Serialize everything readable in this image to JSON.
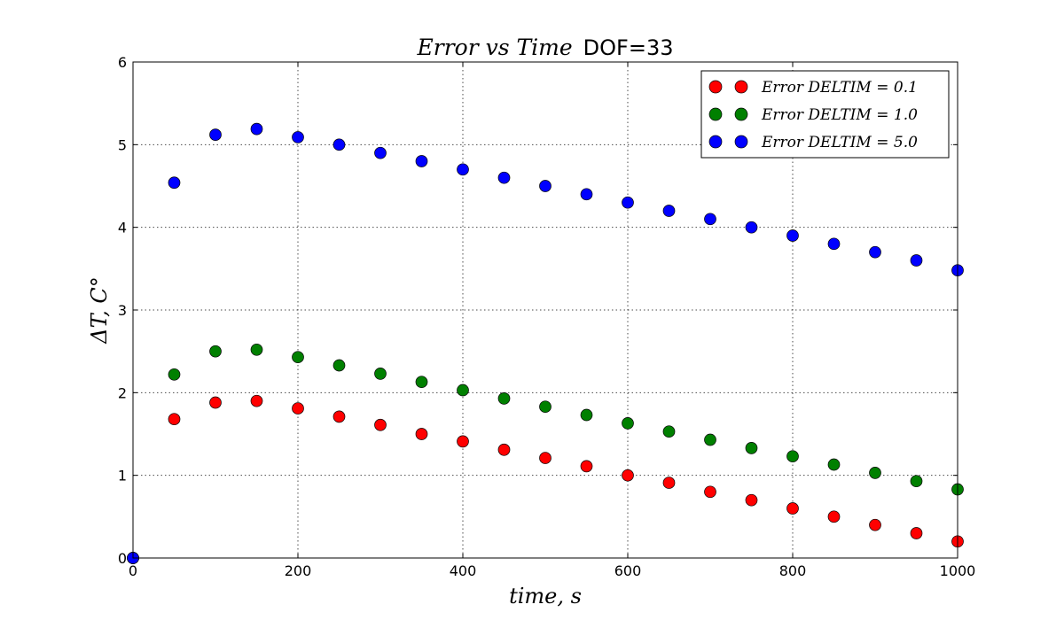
{
  "chart_data": {
    "type": "scatter",
    "title_math": "Error vs Time",
    "title_plain": "DOF=33",
    "xlabel": "time, s",
    "ylabel": "ΔT, C°",
    "xlim": [
      0,
      1000
    ],
    "ylim": [
      0,
      6
    ],
    "xticks": [
      0,
      200,
      400,
      600,
      800,
      1000
    ],
    "yticks": [
      0,
      1,
      2,
      3,
      4,
      5,
      6
    ],
    "xtick_labels": [
      "0",
      "200",
      "400",
      "600",
      "800",
      "1000"
    ],
    "ytick_labels": [
      "0",
      "1",
      "2",
      "3",
      "4",
      "5",
      "6"
    ],
    "grid": true,
    "legend_position": "top-right",
    "x": [
      0,
      50,
      100,
      150,
      200,
      250,
      300,
      350,
      400,
      450,
      500,
      550,
      600,
      650,
      700,
      750,
      800,
      850,
      900,
      950,
      1000
    ],
    "series": [
      {
        "name": "Error DELTIM = 0.1",
        "color": "#ff0000",
        "values": [
          0,
          1.68,
          1.88,
          1.9,
          1.81,
          1.71,
          1.61,
          1.5,
          1.41,
          1.31,
          1.21,
          1.11,
          1.0,
          0.91,
          0.8,
          0.7,
          0.6,
          0.5,
          0.4,
          0.3,
          0.2
        ]
      },
      {
        "name": "Error DELTIM = 1.0",
        "color": "#008000",
        "values": [
          0,
          2.22,
          2.5,
          2.52,
          2.43,
          2.33,
          2.23,
          2.13,
          2.03,
          1.93,
          1.83,
          1.73,
          1.63,
          1.53,
          1.43,
          1.33,
          1.23,
          1.13,
          1.03,
          0.93,
          0.83
        ]
      },
      {
        "name": "Error DELTIM = 5.0",
        "color": "#0000ff",
        "values": [
          0,
          4.54,
          5.12,
          5.19,
          5.09,
          5.0,
          4.9,
          4.8,
          4.7,
          4.6,
          4.5,
          4.4,
          4.3,
          4.2,
          4.1,
          4.0,
          3.9,
          3.8,
          3.7,
          3.6,
          3.48
        ]
      }
    ]
  }
}
